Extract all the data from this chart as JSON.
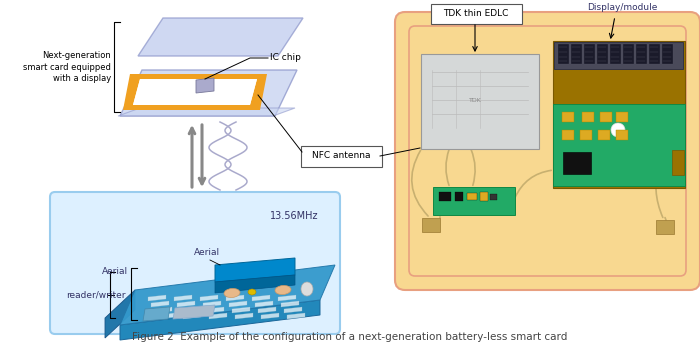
{
  "bg_color": "#ffffff",
  "title": "Figure 2  Example of the configuration of a next-generation battery-less smart card",
  "title_fontsize": 7.5,
  "title_color": "#444444",
  "label_color": "#333366",
  "label_fontsize": 6.5,
  "card_top_color": "#c0ccee",
  "card_bottom_color": "#c8d4f0",
  "card_border_color": "#9099cc",
  "orange_color": "#f0a020",
  "smart_card_label": "Next-generation\nsmart card equipped\nwith a display",
  "ic_chip_label": "IC chip",
  "nfc_antenna_label": "NFC antenna",
  "tdk_label": "TDK thin EDLC",
  "display_label": "Display/module",
  "aerial_label": "Aerial",
  "reader_writer_label": "reader/writer",
  "freq_label": "13.56MHz",
  "rw_box_color": "#ddf0ff",
  "rw_box_border": "#99ccee",
  "card_module_bg": "#f8d890",
  "card_module_border": "#e8a080",
  "edlc_bg": "#d5d8d8",
  "edlc_border": "#aaaaaa",
  "pcb_green": "#22aa66",
  "pcb_dark_gold": "#9a7200",
  "display_seg_bg": "#555566",
  "small_pcb_color": "#22aa66",
  "wire_color": "#c8b070",
  "tan_connector": "#c0a050"
}
